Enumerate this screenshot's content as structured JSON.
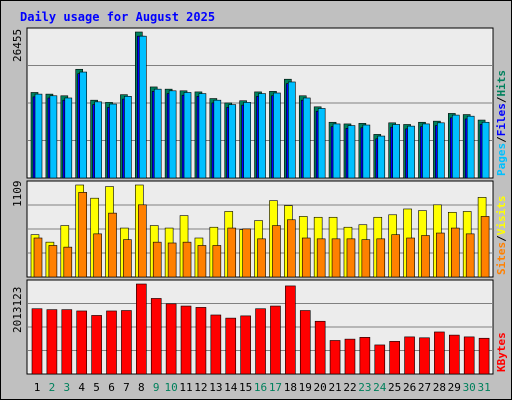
{
  "colors": {
    "title": "#0000ff",
    "plot_bg": "#ececec",
    "hits": "#00805c",
    "files": "#0000ff",
    "pages": "#00c0ff",
    "visits": "#ffff00",
    "sites": "#ff8000",
    "kbytes": "#ff0000",
    "weekend_label": "#00805c",
    "weekday_label": "#000000",
    "grid": "#808080"
  },
  "chart_data": {
    "type": "bar",
    "title": "Daily usage for August 2025",
    "categories": [
      "1",
      "2",
      "3",
      "4",
      "5",
      "6",
      "7",
      "8",
      "9",
      "10",
      "11",
      "12",
      "13",
      "14",
      "15",
      "16",
      "17",
      "18",
      "19",
      "20",
      "21",
      "22",
      "23",
      "24",
      "25",
      "26",
      "27",
      "28",
      "29",
      "30",
      "31"
    ],
    "weekend_days": [
      "2",
      "3",
      "9",
      "10",
      "16",
      "17",
      "23",
      "24",
      "30",
      "31"
    ],
    "panels": [
      {
        "id": "hits_files_pages",
        "ymax_label": "26455",
        "ylim": [
          0,
          26455
        ],
        "axis_labels": [
          "Pages",
          "/",
          "Files",
          "/",
          "Hits"
        ],
        "series": [
          {
            "name": "Hits",
            "values": [
              15500,
              15200,
              14900,
              19700,
              14100,
              13700,
              15100,
              26455,
              16500,
              16100,
              15800,
              15600,
              14400,
              13600,
              14000,
              15600,
              15700,
              17900,
              14900,
              12900,
              10100,
              9800,
              9900,
              7900,
              10000,
              9700,
              10100,
              10300,
              11700,
              11500,
              10500
            ]
          },
          {
            "name": "Files",
            "values": [
              14700,
              14500,
              14100,
              18900,
              13300,
              12800,
              14300,
              25700,
              15700,
              15300,
              15000,
              14800,
              13600,
              12800,
              13200,
              14800,
              14900,
              17100,
              14100,
              12100,
              9300,
              9000,
              9100,
              7100,
              9200,
              8900,
              9300,
              9500,
              10900,
              10700,
              9700
            ]
          },
          {
            "name": "Pages",
            "values": [
              15200,
              14900,
              14500,
              19200,
              13800,
              13400,
              14800,
              25700,
              16100,
              15800,
              15500,
              15300,
              14100,
              13300,
              13700,
              15300,
              15400,
              17400,
              14500,
              12600,
              9800,
              9500,
              9600,
              7600,
              9700,
              9400,
              9800,
              10000,
              11400,
              11200,
              10100
            ]
          }
        ]
      },
      {
        "id": "visits_sites",
        "ymax_label": "1109",
        "ylim": [
          0,
          1109
        ],
        "axis_labels": [
          "Sites",
          "/",
          "Visits"
        ],
        "series": [
          {
            "name": "Visits",
            "values": [
              510,
              420,
              620,
              1109,
              950,
              1090,
              590,
              1109,
              620,
              590,
              740,
              470,
              600,
              790,
              570,
              680,
              920,
              860,
              730,
              720,
              720,
              600,
              630,
              720,
              750,
              820,
              800,
              870,
              780,
              790,
              960
            ]
          },
          {
            "name": "Sites",
            "values": [
              470,
              380,
              360,
              1020,
              520,
              770,
              450,
              870,
              420,
              410,
              420,
              380,
              380,
              590,
              580,
              460,
              620,
              690,
              470,
              460,
              460,
              460,
              450,
              460,
              510,
              470,
              500,
              530,
              590,
              520,
              730
            ]
          }
        ]
      },
      {
        "id": "kbytes",
        "ymax_label": "2013123",
        "ylim": [
          0,
          2013123
        ],
        "axis_labels": [
          "KBytes"
        ],
        "series": [
          {
            "name": "KBytes",
            "values": [
              1460000,
              1440000,
              1440000,
              1410000,
              1310000,
              1410000,
              1420000,
              2013123,
              1690000,
              1570000,
              1520000,
              1490000,
              1320000,
              1250000,
              1300000,
              1460000,
              1520000,
              1970000,
              1420000,
              1180000,
              750000,
              780000,
              820000,
              650000,
              730000,
              830000,
              810000,
              940000,
              870000,
              830000,
              800000
            ]
          }
        ]
      }
    ],
    "grid": true,
    "legend": "right-vertical"
  }
}
